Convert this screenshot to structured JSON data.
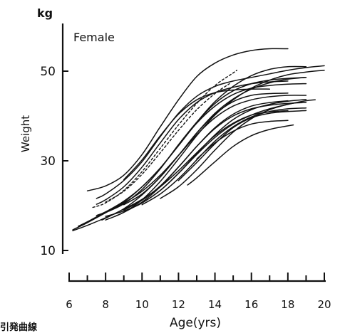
{
  "chart_data": {
    "type": "line",
    "title": "Female",
    "unit_label": "kg",
    "xlabel": "Age(yrs)",
    "ylabel": "Weight",
    "xlim": [
      6,
      20
    ],
    "ylim": [
      10,
      56
    ],
    "x_ticks": [
      6,
      8,
      10,
      12,
      14,
      16,
      18,
      20
    ],
    "x_tick_labels": [
      "6",
      "8",
      "10",
      "12",
      "14",
      "16",
      "18",
      "20"
    ],
    "y_ticks": [
      10,
      30,
      50
    ],
    "y_tick_labels": [
      "10",
      "30",
      "50"
    ],
    "grid": false,
    "legend": "none",
    "caption_fragment": "引発曲線",
    "series": [
      {
        "points": [
          [
            6.2,
            14.4
          ],
          [
            7,
            15.6
          ],
          [
            8,
            17.3
          ],
          [
            9,
            19.2
          ],
          [
            10,
            21.4
          ],
          [
            11,
            24.2
          ],
          [
            12,
            27.8
          ],
          [
            13,
            31.8
          ],
          [
            14,
            35.6
          ],
          [
            15,
            38.4
          ],
          [
            16,
            40.2
          ],
          [
            17,
            40.9
          ],
          [
            18,
            41.2
          ]
        ]
      },
      {
        "points": [
          [
            6.2,
            14.6
          ],
          [
            7,
            16.2
          ],
          [
            8,
            18.4
          ],
          [
            9,
            20.6
          ],
          [
            10,
            23.2
          ],
          [
            11,
            26.8
          ],
          [
            12,
            31.2
          ],
          [
            13,
            35.8
          ],
          [
            14,
            39.6
          ],
          [
            15,
            42.2
          ],
          [
            16,
            43.6
          ],
          [
            17,
            44.3
          ],
          [
            18,
            44.6
          ],
          [
            19,
            44.6
          ]
        ]
      },
      {
        "points": [
          [
            6.5,
            15.4
          ],
          [
            7,
            16.4
          ],
          [
            8,
            18.6
          ],
          [
            9,
            21
          ],
          [
            10,
            24.2
          ],
          [
            11,
            28.4
          ],
          [
            12,
            33.4
          ],
          [
            13,
            38.4
          ],
          [
            14,
            42.2
          ],
          [
            15,
            44.8
          ],
          [
            16,
            46.2
          ],
          [
            17,
            46.8
          ],
          [
            18,
            47.1
          ],
          [
            19,
            47.2
          ]
        ]
      },
      {
        "points": [
          [
            7,
            23.3
          ],
          [
            8,
            24.4
          ],
          [
            9,
            26.8
          ],
          [
            10,
            31.4
          ],
          [
            11,
            37.6
          ],
          [
            12,
            43.6
          ],
          [
            13,
            48.8
          ],
          [
            14,
            51.8
          ],
          [
            15,
            53.6
          ],
          [
            16,
            54.6
          ],
          [
            17,
            55
          ],
          [
            18,
            55
          ]
        ]
      },
      {
        "points": [
          [
            7.5,
            17.8
          ],
          [
            8,
            18.6
          ],
          [
            9,
            20.8
          ],
          [
            10,
            24.2
          ],
          [
            11,
            28.4
          ],
          [
            12,
            33.4
          ],
          [
            13,
            38.6
          ],
          [
            14,
            43.2
          ],
          [
            15,
            46.6
          ],
          [
            16,
            49
          ],
          [
            17,
            50.4
          ],
          [
            18,
            51
          ],
          [
            19,
            51
          ]
        ]
      },
      {
        "points": [
          [
            7.5,
            20.3
          ],
          [
            8,
            21.3
          ],
          [
            9,
            24.2
          ],
          [
            10,
            28.6
          ],
          [
            11,
            34
          ],
          [
            12,
            39.2
          ],
          [
            13,
            43
          ],
          [
            14,
            45.2
          ],
          [
            15,
            46.4
          ],
          [
            16,
            47.2
          ],
          [
            17,
            47.6
          ],
          [
            18,
            47.8
          ]
        ]
      },
      {
        "points": [
          [
            7.5,
            21.6
          ],
          [
            8,
            22.6
          ],
          [
            9,
            25.6
          ],
          [
            10,
            29.8
          ],
          [
            11,
            35.4
          ],
          [
            12,
            40.6
          ],
          [
            13,
            44.4
          ],
          [
            14,
            46.6
          ],
          [
            15,
            47.8
          ],
          [
            16,
            48.6
          ],
          [
            17,
            49.4
          ],
          [
            18,
            50.2
          ],
          [
            19,
            50.8
          ],
          [
            20,
            51.2
          ]
        ]
      },
      {
        "points": [
          [
            7.8,
            16.8
          ],
          [
            8,
            17.2
          ],
          [
            9,
            19.3
          ],
          [
            10,
            22.4
          ],
          [
            11,
            26.4
          ],
          [
            12,
            31.2
          ],
          [
            13,
            36.2
          ],
          [
            14,
            40.6
          ],
          [
            15,
            43.8
          ],
          [
            16,
            46
          ],
          [
            17,
            47.4
          ],
          [
            18,
            48.2
          ],
          [
            19,
            48.6
          ]
        ]
      },
      {
        "points": [
          [
            8,
            16.8
          ],
          [
            9,
            18.5
          ],
          [
            10,
            21.3
          ],
          [
            11,
            25.4
          ],
          [
            12,
            30.4
          ],
          [
            13,
            35.6
          ],
          [
            14,
            40.2
          ],
          [
            15,
            43.6
          ],
          [
            16,
            46.2
          ],
          [
            17,
            48
          ],
          [
            18,
            49.2
          ],
          [
            19,
            49.8
          ],
          [
            20,
            50.2
          ]
        ]
      },
      {
        "points": [
          [
            8,
            17.6
          ],
          [
            9,
            18.8
          ],
          [
            10,
            20.6
          ],
          [
            11,
            23.4
          ],
          [
            12,
            27.2
          ],
          [
            13,
            31.6
          ],
          [
            14,
            35.8
          ],
          [
            15,
            39.2
          ],
          [
            16,
            41.4
          ],
          [
            17,
            42.6
          ],
          [
            18,
            43.3
          ],
          [
            19,
            43.7
          ]
        ]
      },
      {
        "points": [
          [
            8.2,
            18.8
          ],
          [
            9,
            20.4
          ],
          [
            10,
            23.6
          ],
          [
            11,
            28.2
          ],
          [
            12,
            33.6
          ],
          [
            13,
            38.6
          ],
          [
            14,
            42.8
          ],
          [
            15,
            45.6
          ],
          [
            16,
            47.2
          ],
          [
            17,
            48
          ],
          [
            18,
            48.4
          ],
          [
            19,
            48.6
          ]
        ]
      },
      {
        "points": [
          [
            8.5,
            17.6
          ],
          [
            9,
            18.5
          ],
          [
            10,
            20.8
          ],
          [
            11,
            24.2
          ],
          [
            12,
            28.6
          ],
          [
            13,
            33.2
          ],
          [
            14,
            37.4
          ],
          [
            15,
            40.4
          ],
          [
            16,
            42.2
          ],
          [
            17,
            43
          ],
          [
            18,
            43.4
          ]
        ]
      },
      {
        "points": [
          [
            9,
            20.2
          ],
          [
            10,
            22.6
          ],
          [
            11,
            26.4
          ],
          [
            12,
            31.2
          ],
          [
            13,
            36.2
          ],
          [
            14,
            40.4
          ],
          [
            15,
            43.2
          ],
          [
            16,
            44.6
          ],
          [
            17,
            45
          ],
          [
            18,
            45.1
          ]
        ]
      },
      {
        "points": [
          [
            9,
            25.8
          ],
          [
            10,
            30.2
          ],
          [
            11,
            35.6
          ],
          [
            12,
            40.4
          ],
          [
            13,
            43.6
          ],
          [
            14,
            45.2
          ],
          [
            15,
            45.8
          ],
          [
            16,
            46
          ],
          [
            17,
            46
          ]
        ]
      },
      {
        "points": [
          [
            9,
            19
          ],
          [
            10,
            21.2
          ],
          [
            11,
            24.4
          ],
          [
            12,
            28.6
          ],
          [
            13,
            33.2
          ],
          [
            14,
            37.2
          ],
          [
            15,
            40
          ],
          [
            16,
            41.6
          ],
          [
            17,
            42.4
          ],
          [
            18,
            42.8
          ],
          [
            19,
            43
          ]
        ]
      },
      {
        "points": [
          [
            9.5,
            19.6
          ],
          [
            10,
            20.6
          ],
          [
            11,
            23.4
          ],
          [
            12,
            27.2
          ],
          [
            13,
            31.4
          ],
          [
            14,
            35.2
          ],
          [
            15,
            38.2
          ],
          [
            16,
            40.2
          ],
          [
            17,
            41.6
          ],
          [
            18,
            42.6
          ],
          [
            19,
            43.4
          ],
          [
            19.5,
            43.6
          ]
        ]
      },
      {
        "points": [
          [
            10,
            20.2
          ],
          [
            11,
            22.6
          ],
          [
            12,
            26
          ],
          [
            13,
            30.2
          ],
          [
            14,
            34.4
          ],
          [
            15,
            37.6
          ],
          [
            16,
            39.8
          ],
          [
            17,
            41
          ],
          [
            18,
            41.6
          ],
          [
            19,
            41.8
          ]
        ]
      },
      {
        "points": [
          [
            11,
            21.6
          ],
          [
            12,
            24.2
          ],
          [
            13,
            28
          ],
          [
            14,
            32.4
          ],
          [
            15,
            36.4
          ],
          [
            16,
            39.4
          ],
          [
            17,
            41.4
          ],
          [
            18,
            42.6
          ],
          [
            18.5,
            43
          ]
        ]
      },
      {
        "points": [
          [
            12,
            25.6
          ],
          [
            13,
            29.6
          ],
          [
            14,
            33.8
          ],
          [
            15,
            37.4
          ],
          [
            16,
            39.6
          ],
          [
            17,
            40.6
          ],
          [
            18,
            41
          ],
          [
            19,
            41.2
          ]
        ]
      },
      {
        "points": [
          [
            13,
            30.4
          ],
          [
            14,
            34
          ],
          [
            15,
            36.6
          ],
          [
            16,
            38.2
          ],
          [
            17,
            38.8
          ],
          [
            18,
            39
          ]
        ]
      },
      {
        "points": [
          [
            12.5,
            24.6
          ],
          [
            13,
            26.2
          ],
          [
            14,
            29.8
          ],
          [
            15,
            33.2
          ],
          [
            16,
            35.6
          ],
          [
            17,
            37
          ],
          [
            18,
            37.8
          ],
          [
            18.3,
            38
          ]
        ]
      },
      {
        "points": [
          [
            7.3,
            19.6
          ],
          [
            8,
            20.6
          ],
          [
            9,
            23.4
          ],
          [
            10,
            27.6
          ],
          [
            11,
            32.8
          ],
          [
            12,
            38
          ],
          [
            13,
            42.8
          ],
          [
            14,
            46.8
          ],
          [
            15,
            49.6
          ],
          [
            15.2,
            50.2
          ]
        ],
        "style": "dashed"
      },
      {
        "points": [
          [
            8,
            20.8
          ],
          [
            9,
            23.2
          ],
          [
            10,
            27
          ],
          [
            11,
            31.8
          ],
          [
            12,
            36.8
          ],
          [
            13,
            41.4
          ],
          [
            14,
            45
          ],
          [
            14.8,
            47.2
          ]
        ],
        "style": "dashed"
      }
    ]
  }
}
